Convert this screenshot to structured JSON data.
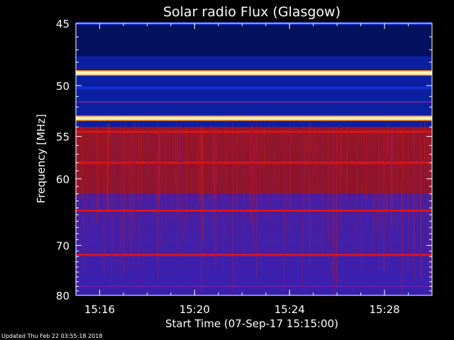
{
  "chart_data": {
    "type": "heatmap",
    "title": "Solar radio Flux (Glasgow)",
    "xlabel": "Start Time (07-Sep-17 15:15:00)",
    "ylabel": "Frequency [MHz]",
    "x_ticks": [
      "15:16",
      "15:20",
      "15:24",
      "15:28"
    ],
    "x_tick_minutes": [
      1,
      5,
      9,
      13
    ],
    "xlim_minutes": [
      0,
      15
    ],
    "y_ticks": [
      45,
      50,
      55,
      60,
      70,
      80
    ],
    "ylim": [
      45,
      80
    ],
    "y_scale": "reciprocal",
    "colormap": "blue-red-white",
    "bands": [
      {
        "freq": 45.0,
        "level": "low"
      },
      {
        "freq": 46.5,
        "level": "very-low"
      },
      {
        "freq": 48.9,
        "level": "saturated"
      },
      {
        "freq": 50.2,
        "level": "low"
      },
      {
        "freq": 51.5,
        "level": "medium"
      },
      {
        "freq": 53.1,
        "level": "saturated"
      },
      {
        "freq": 54.5,
        "level": "high"
      },
      {
        "freq": 58.0,
        "level": "high"
      },
      {
        "freq": 64.4,
        "level": "high"
      },
      {
        "freq": 71.7,
        "level": "high"
      },
      {
        "freq": 78.0,
        "level": "medium"
      }
    ],
    "grid": false
  },
  "colors": {
    "background": "#000000",
    "axes": "#ffffff",
    "low": "#0a1a8c",
    "medium": "#5a1a9a",
    "high": "#c81010",
    "saturated": "#fff4c0"
  },
  "footer": "Updated Thu Feb 22 03:55:18 2018"
}
